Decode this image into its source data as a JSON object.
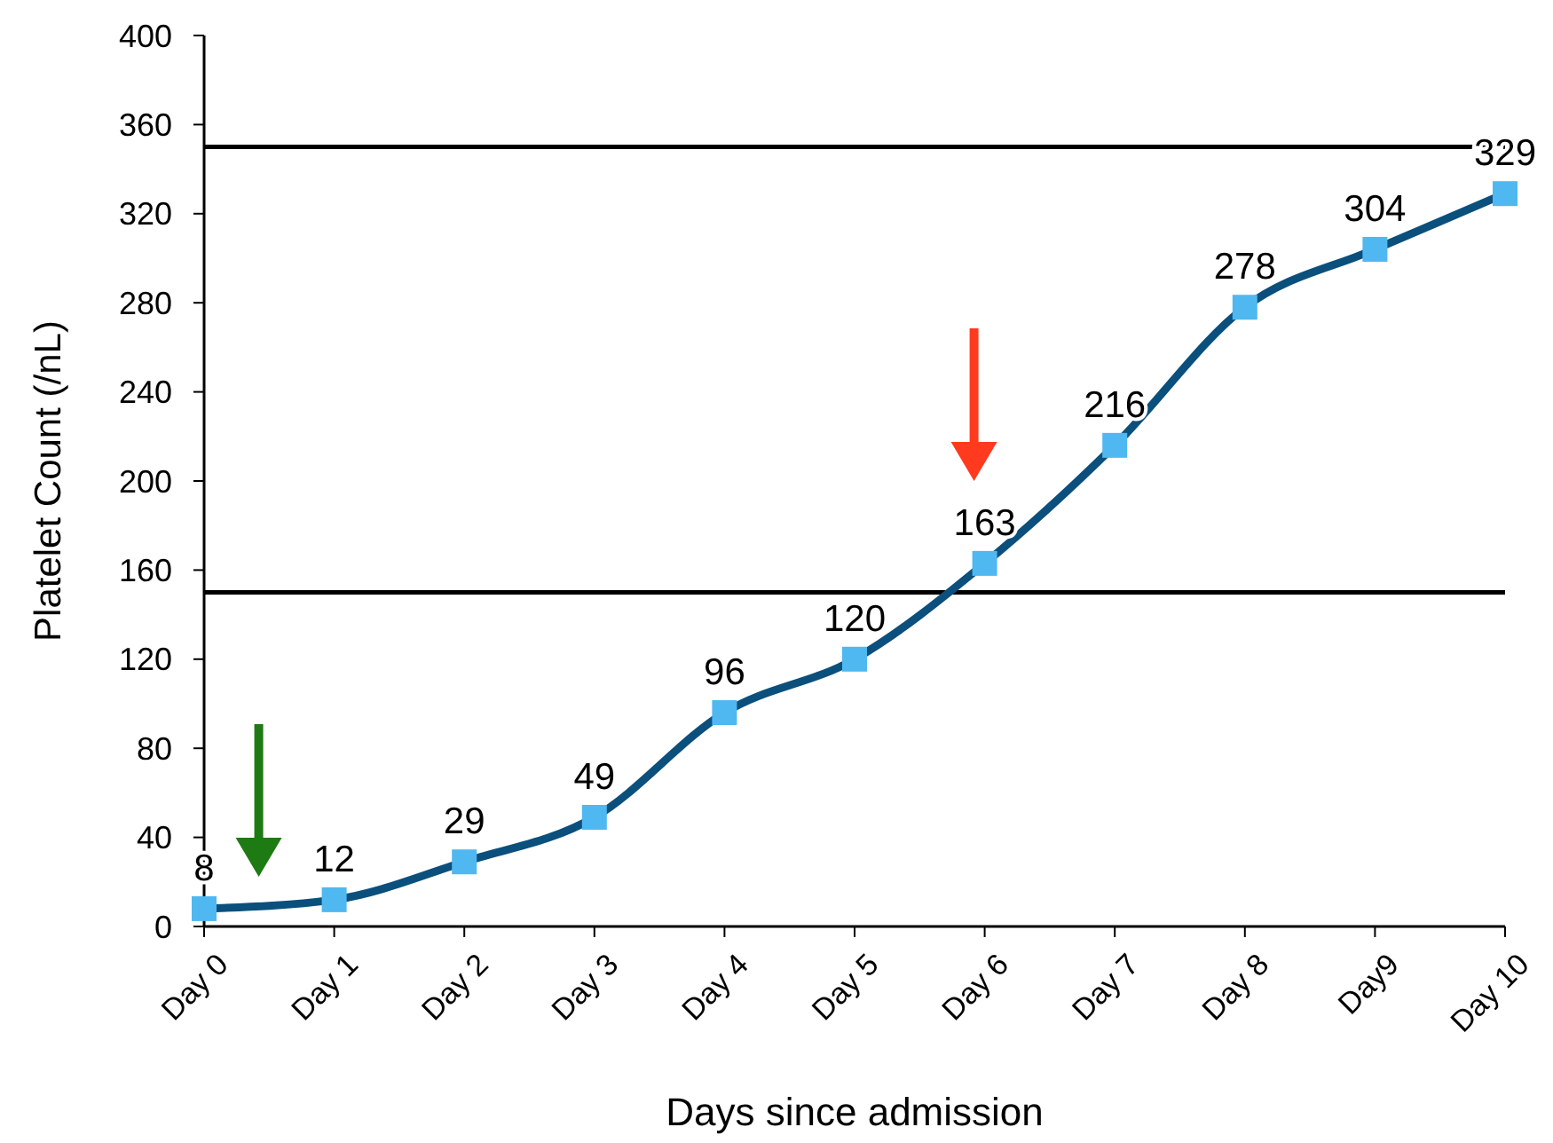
{
  "chart_data": {
    "type": "line",
    "xlabel": "Days since admission",
    "ylabel": "Platelet Count (/nL)",
    "categories": [
      "Day 0",
      "Day 1",
      "Day 2",
      "Day 3",
      "Day 4",
      "Day 5",
      "Day 6",
      "Day 7",
      "Day 8",
      "Day9",
      "Day 10"
    ],
    "series": [
      {
        "color": "#0b4f7c",
        "values": [
          8,
          12,
          29,
          49,
          96,
          120,
          163,
          216,
          278,
          304,
          329
        ]
      }
    ],
    "ylim": [
      0,
      400
    ],
    "yticks": [
      0,
      40,
      80,
      120,
      160,
      200,
      240,
      280,
      320,
      360,
      400
    ],
    "ref_lines": [
      {
        "axis": "y",
        "value": 350,
        "color": "#000000"
      },
      {
        "axis": "y",
        "value": 150,
        "color": "#000000"
      }
    ],
    "grid": false,
    "marker": "square",
    "line_style": "solid",
    "data_labels": true
  }
}
